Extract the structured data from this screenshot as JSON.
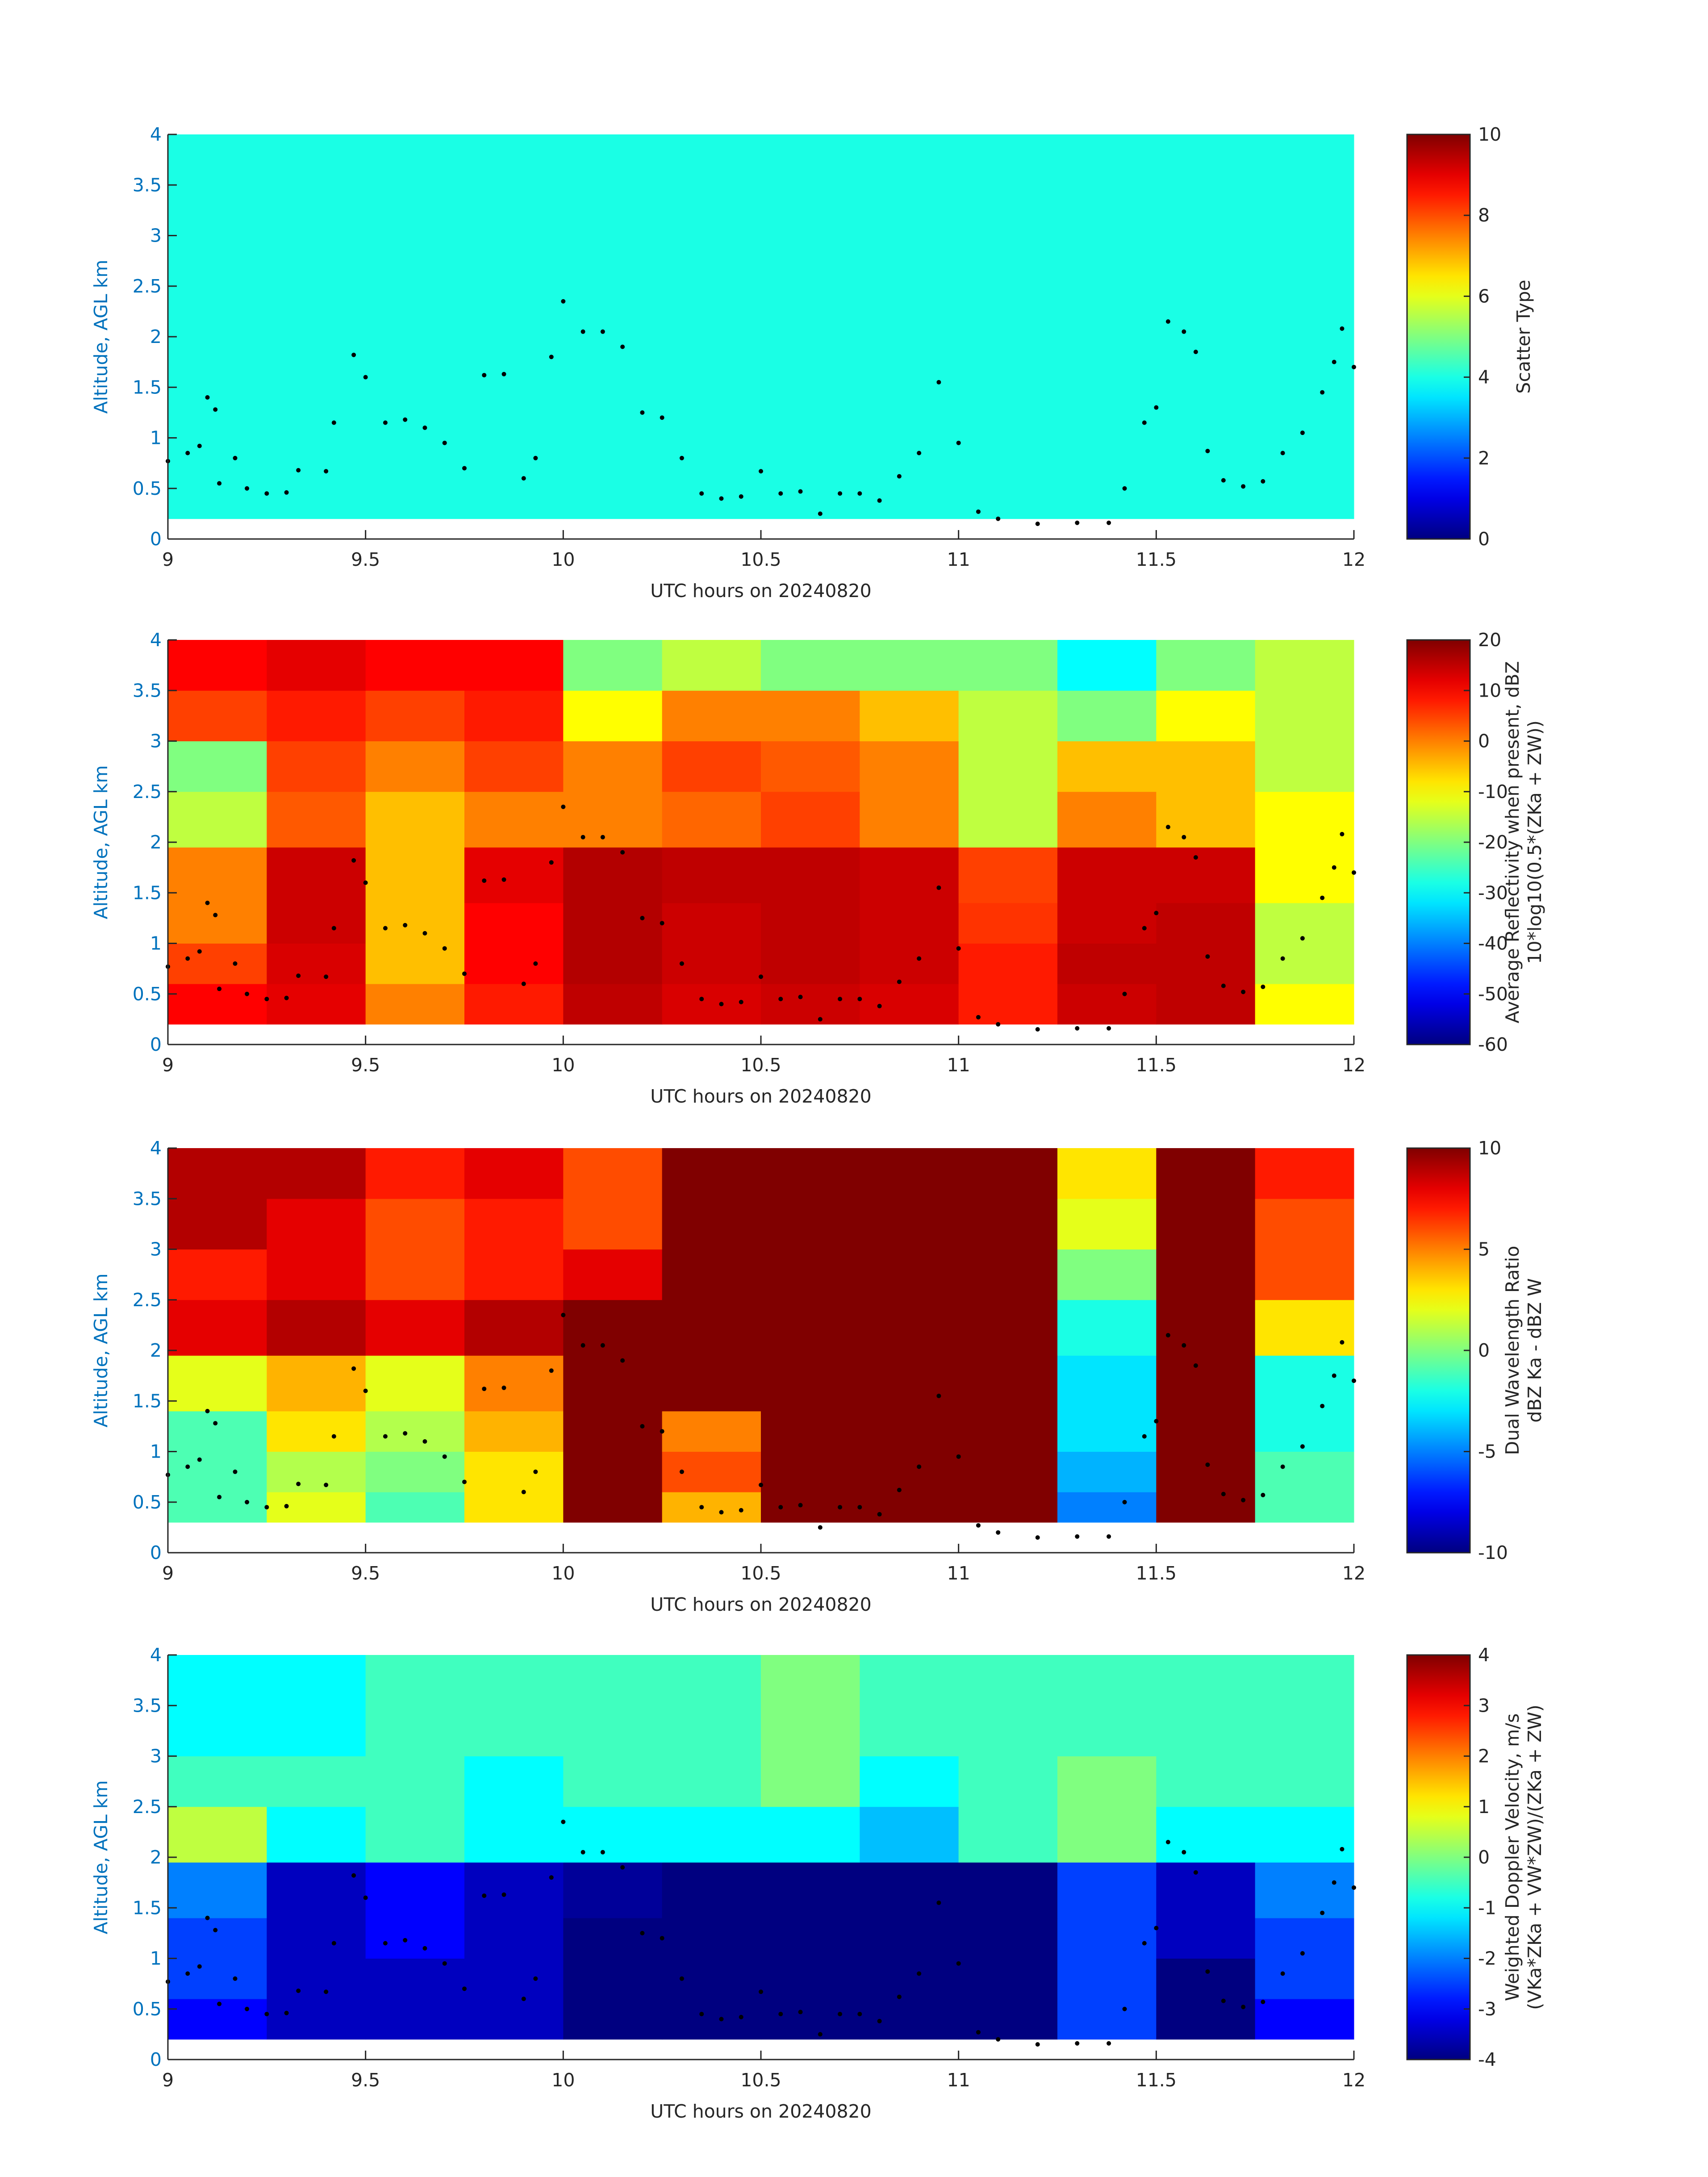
{
  "chart_data": [
    {
      "type": "heatmap",
      "xlabel": "UTC hours on 20240820",
      "ylabel": "Altitude, AGL km",
      "cbar_label": [
        "Scatter Type"
      ],
      "xlim": [
        9,
        12
      ],
      "xticks": [
        9,
        9.5,
        10,
        10.5,
        11,
        11.5,
        12
      ],
      "ylim": [
        0,
        4
      ],
      "yticks": [
        0,
        0.5,
        1,
        1.5,
        2,
        2.5,
        3,
        3.5,
        4
      ],
      "clim": [
        0,
        10
      ],
      "cticks": [
        0,
        2,
        4,
        6,
        8,
        10
      ],
      "colormap": "jet",
      "xedges": [
        9,
        9.25,
        9.5,
        9.75,
        10,
        10.25,
        10.5,
        10.75,
        11,
        11.25,
        11.5,
        11.75,
        12
      ],
      "yedges": [
        0.2,
        0.6,
        1.0,
        1.4,
        1.95,
        2.5,
        3.0,
        3.5,
        4.0
      ],
      "z": [
        [
          4,
          4,
          4,
          4,
          4,
          4,
          4,
          4,
          4,
          4,
          4,
          4
        ],
        [
          4,
          4,
          4,
          4,
          4,
          4,
          4,
          4,
          4,
          4,
          4,
          4
        ],
        [
          4,
          4,
          4,
          4,
          4,
          4,
          4,
          4,
          4,
          4,
          4,
          4
        ],
        [
          4,
          4,
          4,
          4,
          4,
          4,
          4,
          4,
          4,
          4,
          4,
          4
        ],
        [
          4,
          4,
          4,
          4,
          4,
          4,
          4,
          4,
          4,
          4,
          4,
          4
        ],
        [
          4,
          4,
          4,
          4,
          4,
          4,
          4,
          4,
          4,
          4,
          4,
          4
        ],
        [
          4,
          4,
          4,
          4,
          4,
          4,
          4,
          4,
          4,
          4,
          4,
          4
        ],
        [
          4,
          4,
          4,
          4,
          4,
          4,
          4,
          4,
          4,
          4,
          4,
          4
        ]
      ],
      "points": {
        "color": "#000000",
        "x": [
          9.0,
          9.05,
          9.08,
          9.1,
          9.12,
          9.13,
          9.17,
          9.2,
          9.25,
          9.3,
          9.33,
          9.4,
          9.42,
          9.47,
          9.5,
          9.55,
          9.6,
          9.65,
          9.7,
          9.75,
          9.8,
          9.85,
          9.9,
          9.93,
          9.97,
          10.0,
          10.05,
          10.1,
          10.15,
          10.2,
          10.25,
          10.3,
          10.35,
          10.4,
          10.45,
          10.5,
          10.55,
          10.6,
          10.65,
          10.7,
          10.75,
          10.8,
          10.85,
          10.9,
          10.95,
          11.0,
          11.05,
          11.1,
          11.2,
          11.3,
          11.38,
          11.42,
          11.47,
          11.5,
          11.53,
          11.57,
          11.6,
          11.63,
          11.67,
          11.72,
          11.77,
          11.82,
          11.87,
          11.92,
          11.95,
          11.97,
          12.0
        ],
        "y": [
          0.77,
          0.85,
          0.92,
          1.4,
          1.28,
          0.55,
          0.8,
          0.5,
          0.45,
          0.46,
          0.68,
          0.67,
          1.15,
          1.82,
          1.6,
          1.15,
          1.18,
          1.1,
          0.95,
          0.7,
          1.62,
          1.63,
          0.6,
          0.8,
          1.8,
          2.35,
          2.05,
          2.05,
          1.9,
          1.25,
          1.2,
          0.8,
          0.45,
          0.4,
          0.42,
          0.67,
          0.45,
          0.47,
          0.25,
          0.45,
          0.45,
          0.38,
          0.62,
          0.85,
          1.55,
          0.95,
          0.27,
          0.2,
          0.15,
          0.16,
          0.16,
          0.5,
          1.15,
          1.3,
          2.15,
          2.05,
          1.85,
          0.87,
          0.58,
          0.52,
          0.57,
          0.85,
          1.05,
          1.45,
          1.75,
          2.08,
          1.7
        ]
      }
    },
    {
      "type": "heatmap",
      "xlabel": "UTC hours on 20240820",
      "ylabel": "Altitude, AGL km",
      "cbar_label": [
        "Average Reflectivity when present, dBZ",
        "10*log10(0.5*(ZKa + ZW))"
      ],
      "xlim": [
        9,
        12
      ],
      "xticks": [
        9,
        9.5,
        10,
        10.5,
        11,
        11.5,
        12
      ],
      "ylim": [
        0,
        4
      ],
      "yticks": [
        0,
        0.5,
        1,
        1.5,
        2,
        2.5,
        3,
        3.5,
        4
      ],
      "clim": [
        -60,
        20
      ],
      "cticks": [
        -60,
        -50,
        -40,
        -30,
        -20,
        -10,
        0,
        10,
        20
      ],
      "colormap": "jet",
      "xedges": [
        9,
        9.25,
        9.5,
        9.75,
        10,
        10.25,
        10.5,
        10.75,
        11,
        11.25,
        11.5,
        11.75,
        12
      ],
      "yedges": [
        0.2,
        0.6,
        1.0,
        1.4,
        1.95,
        2.5,
        3.0,
        3.5,
        4.0
      ],
      "z": [
        [
          10,
          12,
          0,
          8,
          15,
          13,
          14,
          13,
          8,
          14,
          15,
          -10
        ],
        [
          5,
          13,
          -5,
          10,
          16,
          14,
          15,
          14,
          8,
          15,
          15,
          -15
        ],
        [
          0,
          14,
          -5,
          10,
          16,
          14,
          15,
          14,
          6,
          14,
          15,
          -15
        ],
        [
          0,
          14,
          -5,
          12,
          16,
          15,
          15,
          14,
          5,
          14,
          14,
          -10
        ],
        [
          -15,
          3,
          -5,
          0,
          0,
          2,
          5,
          0,
          -15,
          0,
          -5,
          -10
        ],
        [
          -20,
          5,
          0,
          5,
          0,
          5,
          3,
          0,
          -15,
          -5,
          -5,
          -15
        ],
        [
          5,
          8,
          5,
          8,
          -10,
          0,
          0,
          -5,
          -15,
          -20,
          -10,
          -15
        ],
        [
          10,
          12,
          10,
          10,
          -20,
          -15,
          -20,
          -20,
          -20,
          -30,
          -20,
          -15
        ]
      ],
      "points": {
        "color": "#000000",
        "x": [
          9.0,
          9.05,
          9.08,
          9.1,
          9.12,
          9.13,
          9.17,
          9.2,
          9.25,
          9.3,
          9.33,
          9.4,
          9.42,
          9.47,
          9.5,
          9.55,
          9.6,
          9.65,
          9.7,
          9.75,
          9.8,
          9.85,
          9.9,
          9.93,
          9.97,
          10.0,
          10.05,
          10.1,
          10.15,
          10.2,
          10.25,
          10.3,
          10.35,
          10.4,
          10.45,
          10.5,
          10.55,
          10.6,
          10.65,
          10.7,
          10.75,
          10.8,
          10.85,
          10.9,
          10.95,
          11.0,
          11.05,
          11.1,
          11.2,
          11.3,
          11.38,
          11.42,
          11.47,
          11.5,
          11.53,
          11.57,
          11.6,
          11.63,
          11.67,
          11.72,
          11.77,
          11.82,
          11.87,
          11.92,
          11.95,
          11.97,
          12.0
        ],
        "y": [
          0.77,
          0.85,
          0.92,
          1.4,
          1.28,
          0.55,
          0.8,
          0.5,
          0.45,
          0.46,
          0.68,
          0.67,
          1.15,
          1.82,
          1.6,
          1.15,
          1.18,
          1.1,
          0.95,
          0.7,
          1.62,
          1.63,
          0.6,
          0.8,
          1.8,
          2.35,
          2.05,
          2.05,
          1.9,
          1.25,
          1.2,
          0.8,
          0.45,
          0.4,
          0.42,
          0.67,
          0.45,
          0.47,
          0.25,
          0.45,
          0.45,
          0.38,
          0.62,
          0.85,
          1.55,
          0.95,
          0.27,
          0.2,
          0.15,
          0.16,
          0.16,
          0.5,
          1.15,
          1.3,
          2.15,
          2.05,
          1.85,
          0.87,
          0.58,
          0.52,
          0.57,
          0.85,
          1.05,
          1.45,
          1.75,
          2.08,
          1.7
        ]
      }
    },
    {
      "type": "heatmap",
      "xlabel": "UTC hours on 20240820",
      "ylabel": "Altitude, AGL km",
      "cbar_label": [
        "Dual Wavelength Ratio",
        "dBZ Ka - dBZ W"
      ],
      "xlim": [
        9,
        12
      ],
      "xticks": [
        9,
        9.5,
        10,
        10.5,
        11,
        11.5,
        12
      ],
      "ylim": [
        0,
        4
      ],
      "yticks": [
        0,
        0.5,
        1,
        1.5,
        2,
        2.5,
        3,
        3.5,
        4
      ],
      "clim": [
        -10,
        10
      ],
      "cticks": [
        -10,
        -5,
        0,
        5,
        10
      ],
      "colormap": "jet",
      "xedges": [
        9,
        9.25,
        9.5,
        9.75,
        10,
        10.25,
        10.5,
        10.75,
        11,
        11.25,
        11.5,
        11.75,
        12
      ],
      "yedges": [
        0.3,
        0.6,
        1.0,
        1.4,
        1.95,
        2.5,
        3.0,
        3.5,
        4.0
      ],
      "z": [
        [
          -1,
          2,
          -1,
          3,
          10,
          4,
          10,
          10,
          10,
          -5,
          10,
          -1
        ],
        [
          -1,
          1,
          0,
          3,
          10,
          6,
          10,
          10,
          10,
          -4,
          10,
          -1
        ],
        [
          -1,
          3,
          1,
          4,
          10,
          5,
          10,
          10,
          10,
          -3,
          10,
          -2
        ],
        [
          2,
          4,
          2,
          5,
          10,
          10,
          10,
          10,
          10,
          -3,
          10,
          -2
        ],
        [
          8,
          9,
          8,
          9,
          10,
          10,
          10,
          10,
          10,
          -2,
          10,
          3
        ],
        [
          7,
          8,
          6,
          7,
          8,
          10,
          10,
          10,
          10,
          0,
          10,
          6
        ],
        [
          9,
          8,
          6,
          7,
          6,
          10,
          10,
          10,
          10,
          2,
          10,
          6
        ],
        [
          9,
          9,
          7,
          8,
          6,
          10,
          10,
          10,
          10,
          3,
          10,
          7
        ]
      ],
      "points": {
        "color": "#000000",
        "x": [
          9.0,
          9.05,
          9.08,
          9.1,
          9.12,
          9.13,
          9.17,
          9.2,
          9.25,
          9.3,
          9.33,
          9.4,
          9.42,
          9.47,
          9.5,
          9.55,
          9.6,
          9.65,
          9.7,
          9.75,
          9.8,
          9.85,
          9.9,
          9.93,
          9.97,
          10.0,
          10.05,
          10.1,
          10.15,
          10.2,
          10.25,
          10.3,
          10.35,
          10.4,
          10.45,
          10.5,
          10.55,
          10.6,
          10.65,
          10.7,
          10.75,
          10.8,
          10.85,
          10.9,
          10.95,
          11.0,
          11.05,
          11.1,
          11.2,
          11.3,
          11.38,
          11.42,
          11.47,
          11.5,
          11.53,
          11.57,
          11.6,
          11.63,
          11.67,
          11.72,
          11.77,
          11.82,
          11.87,
          11.92,
          11.95,
          11.97,
          12.0
        ],
        "y": [
          0.77,
          0.85,
          0.92,
          1.4,
          1.28,
          0.55,
          0.8,
          0.5,
          0.45,
          0.46,
          0.68,
          0.67,
          1.15,
          1.82,
          1.6,
          1.15,
          1.18,
          1.1,
          0.95,
          0.7,
          1.62,
          1.63,
          0.6,
          0.8,
          1.8,
          2.35,
          2.05,
          2.05,
          1.9,
          1.25,
          1.2,
          0.8,
          0.45,
          0.4,
          0.42,
          0.67,
          0.45,
          0.47,
          0.25,
          0.45,
          0.45,
          0.38,
          0.62,
          0.85,
          1.55,
          0.95,
          0.27,
          0.2,
          0.15,
          0.16,
          0.16,
          0.5,
          1.15,
          1.3,
          2.15,
          2.05,
          1.85,
          0.87,
          0.58,
          0.52,
          0.57,
          0.85,
          1.05,
          1.45,
          1.75,
          2.08,
          1.7
        ]
      }
    },
    {
      "type": "heatmap",
      "xlabel": "UTC hours on 20240820",
      "ylabel": "Altitude, AGL km",
      "cbar_label": [
        "Weighted Doppler Velocity, m/s",
        "(VKa*ZKa + VW*ZW)/(ZKa + ZW)"
      ],
      "xlim": [
        9,
        12
      ],
      "xticks": [
        9,
        9.5,
        10,
        10.5,
        11,
        11.5,
        12
      ],
      "ylim": [
        0,
        4
      ],
      "yticks": [
        0,
        0.5,
        1,
        1.5,
        2,
        2.5,
        3,
        3.5,
        4
      ],
      "clim": [
        -4,
        4
      ],
      "cticks": [
        -4,
        -3,
        -2,
        -1,
        0,
        1,
        2,
        3,
        4
      ],
      "colormap": "jet",
      "xedges": [
        9,
        9.25,
        9.5,
        9.75,
        10,
        10.25,
        10.5,
        10.75,
        11,
        11.25,
        11.5,
        11.75,
        12
      ],
      "yedges": [
        0.2,
        0.6,
        1.0,
        1.4,
        1.95,
        2.5,
        3.0,
        3.5,
        4.0
      ],
      "z": [
        [
          -3,
          -3.5,
          -3.5,
          -3.5,
          -4,
          -4,
          -4,
          -4,
          -4,
          -2.5,
          -4,
          -3
        ],
        [
          -2.5,
          -3.5,
          -3.5,
          -3.5,
          -4,
          -4,
          -4,
          -4,
          -4,
          -2.5,
          -4,
          -2.5
        ],
        [
          -2.5,
          -3.5,
          -3,
          -3.5,
          -4,
          -4,
          -4,
          -4,
          -4,
          -2.5,
          -3.5,
          -2.5
        ],
        [
          -2,
          -3.5,
          -3,
          -3.5,
          -3.8,
          -4,
          -4,
          -4,
          -4,
          -2.5,
          -3.5,
          -2
        ],
        [
          0.5,
          -1,
          -0.5,
          -1,
          -1,
          -1,
          -1,
          -1.5,
          -0.5,
          0,
          -1,
          -1
        ],
        [
          -0.5,
          -0.5,
          -0.5,
          -1,
          -0.5,
          -0.5,
          0,
          -1,
          -0.5,
          0,
          -0.5,
          -0.5
        ],
        [
          -1,
          -1,
          -0.5,
          -0.5,
          -0.5,
          -0.5,
          0,
          -0.5,
          -0.5,
          -0.5,
          -0.5,
          -0.5
        ],
        [
          -1,
          -1,
          -0.5,
          -0.5,
          -0.5,
          -0.5,
          0,
          -0.5,
          -0.5,
          -0.5,
          -0.5,
          -0.5
        ]
      ],
      "points": {
        "color": "#000000",
        "x": [
          9.0,
          9.05,
          9.08,
          9.1,
          9.12,
          9.13,
          9.17,
          9.2,
          9.25,
          9.3,
          9.33,
          9.4,
          9.42,
          9.47,
          9.5,
          9.55,
          9.6,
          9.65,
          9.7,
          9.75,
          9.8,
          9.85,
          9.9,
          9.93,
          9.97,
          10.0,
          10.05,
          10.1,
          10.15,
          10.2,
          10.25,
          10.3,
          10.35,
          10.4,
          10.45,
          10.5,
          10.55,
          10.6,
          10.65,
          10.7,
          10.75,
          10.8,
          10.85,
          10.9,
          10.95,
          11.0,
          11.05,
          11.1,
          11.2,
          11.3,
          11.38,
          11.42,
          11.47,
          11.5,
          11.53,
          11.57,
          11.6,
          11.63,
          11.67,
          11.72,
          11.77,
          11.82,
          11.87,
          11.92,
          11.95,
          11.97,
          12.0
        ],
        "y": [
          0.77,
          0.85,
          0.92,
          1.4,
          1.28,
          0.55,
          0.8,
          0.5,
          0.45,
          0.46,
          0.68,
          0.67,
          1.15,
          1.82,
          1.6,
          1.15,
          1.18,
          1.1,
          0.95,
          0.7,
          1.62,
          1.63,
          0.6,
          0.8,
          1.8,
          2.35,
          2.05,
          2.05,
          1.9,
          1.25,
          1.2,
          0.8,
          0.45,
          0.4,
          0.42,
          0.67,
          0.45,
          0.47,
          0.25,
          0.45,
          0.45,
          0.38,
          0.62,
          0.85,
          1.55,
          0.95,
          0.27,
          0.2,
          0.15,
          0.16,
          0.16,
          0.5,
          1.15,
          1.3,
          2.15,
          2.05,
          1.85,
          0.87,
          0.58,
          0.52,
          0.57,
          0.85,
          1.05,
          1.45,
          1.75,
          2.08,
          1.7
        ]
      }
    }
  ]
}
